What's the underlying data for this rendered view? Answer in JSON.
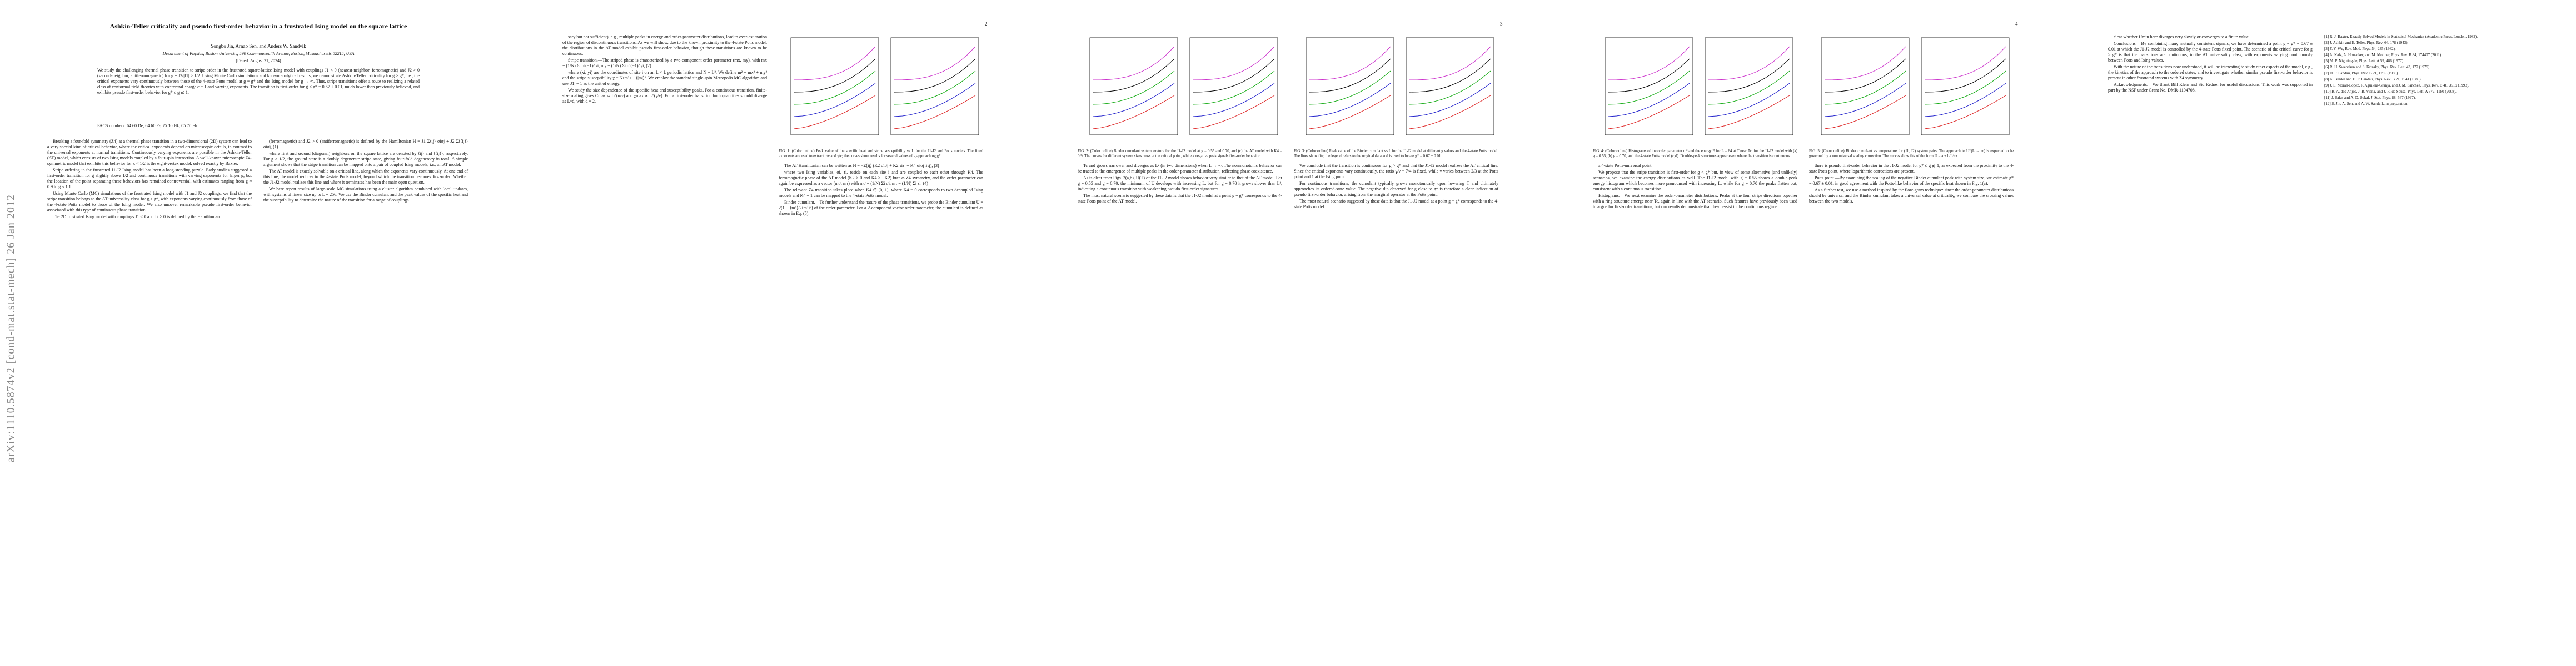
{
  "arxiv_stamp": "arXiv:1110.5874v2  [cond-mat.stat-mech]  26 Jan 2012",
  "header": {
    "title": "Ashkin-Teller criticality and pseudo first-order behavior in a frustrated Ising model on the square lattice",
    "authors": "Songbo Jin, Arnab Sen, and Anders W. Sandvik",
    "affiliation": "Department of Physics, Boston University, 590 Commonwealth Avenue, Boston, Massachusetts 02215, USA",
    "date": "(Dated: August 21, 2024)",
    "abstract": "We study the challenging thermal phase transition to stripe order in the frustrated square-lattice Ising model with couplings J1 < 0 (nearest-neighbor, ferromagnetic) and J2 > 0 (second-neighbor, antiferromagnetic) for g = J2/|J1| > 1/2. Using Monte Carlo simulations and known analytical results, we demonstrate Ashkin-Teller criticality for g ≥ g*; i.e., the critical exponents vary continuously between those of the 4-state Potts model at g = g* and the Ising model for g → ∞. Thus, stripe transitions offer a route to realizing a related class of conformal field theories with conformal charge c = 1 and varying exponents. The transition is first-order for g < g* = 0.67 ± 0.01, much lower than previously believed, and exhibits pseudo first-order behavior for g* ≤ g ≲ 1.",
    "pacs": "PACS numbers: 64.60.De, 64.60.F-, 75.10.Hk, 05.70.Fh"
  },
  "page_numbers": [
    "2",
    "3",
    "4"
  ],
  "columns": [
    {
      "paragraphs": [
        "Breaking a four-fold symmetry (Z4) at a thermal phase transition in a two-dimensional (2D) system can lead to a very special kind of critical behavior, where the critical exponents depend on microscopic details, in contrast to the universal exponents at normal transitions. Continuously varying exponents are possible in the Ashkin-Teller (AT) model, which consists of two Ising models coupled by a four-spin interaction. A well-known microscopic Z4-symmetric model that exhibits this behavior for κ < 1/2 is the eight-vertex model, solved exactly by Baxter.",
        "Stripe ordering in the frustrated J1-J2 Ising model has been a long-standing puzzle. Early studies suggested a first-order transition for g slightly above 1/2 and continuous transitions with varying exponents for larger g, but the location of the point separating these behaviors has remained controversial, with estimates ranging from g ≈ 0.9 to g ≈ 1.1.",
        "Using Monte Carlo (MC) simulations of the frustrated Ising model with J1 and J2 couplings, we find that the stripe transition belongs to the AT universality class for g ≥ g*, with exponents varying continuously from those of the 4-state Potts model to those of the Ising model. We also uncover remarkable pseudo first-order behavior associated with this type of continuous phase transition.",
        "The 2D frustrated Ising model with couplings J1 < 0 and J2 > 0 is defined by the Hamiltonian"
      ]
    },
    {
      "paragraphs": [
        "(ferromagnetic) and J2 > 0 (antiferromagnetic) is defined by the Hamiltonian H = J1 Σ⟨ij⟩ σiσj + J2 Σ⟨⟨ij⟩⟩ σiσj, (1)",
        "where first and second (diagonal) neighbors on the square lattice are denoted by ⟨ij⟩ and ⟨⟨ij⟩⟩, respectively. For g > 1/2, the ground state is a doubly degenerate stripe state, giving four-fold degeneracy in total. A simple argument shows that the stripe transition can be mapped onto a pair of coupled Ising models, i.e., an AT model.",
        "The AT model is exactly solvable on a critical line, along which the exponents vary continuously. At one end of this line, the model reduces to the 4-state Potts model, beyond which the transition becomes first-order. Whether the J1-J2 model realizes this line and where it terminates has been the main open question.",
        "We here report results of large-scale MC simulations using a cluster algorithm combined with local updates, with systems of linear size up to L = 256. We use the Binder cumulant and the peak values of the specific heat and the susceptibility to determine the nature of the transition for a range of couplings."
      ]
    },
    {
      "paragraphs": [
        "sary but not sufficient), e.g., multiple peaks in energy and order-parameter distributions, lead to over-estimation of the region of discontinuous transitions. As we will show, due to the known proximity to the 4-state Potts model, the distributions in the AT model exhibit pseudo first-order behavior, though these transitions are known to be continuous.",
        "Stripe transition.—The striped phase is characterized by a two-component order parameter (mx, my), with mx = (1/N) Σi σi(−1)^xi, my = (1/N) Σi σi(−1)^yi, (2)",
        "where (xi, yi) are the coordinates of site i on an L × L periodic lattice and N = L². We define m² = mx² + my² and the stripe susceptibility χ = N⟨m²⟩ − ⟨|m|⟩². We employ the standard single-spin Metropolis MC algorithm and use |J1| = 1 as the unit of energy.",
        "We study the size dependence of the specific heat and susceptibility peaks. For a continuous transition, finite-size scaling gives Cmax ∝ L^(α/ν) and χmax ∝ L^(γ/ν). For a first-order transition both quantities should diverge as L^d, with d = 2."
      ]
    },
    {
      "figure": {
        "caption": "FIG. 1: (Color online) Peak value of the specific heat and stripe susceptibility vs L for the J1-J2 and Potts models. The fitted exponents are used to extract α/ν and γ/ν; the curves show results for several values of g approaching g*."
      },
      "paragraphs": [
        "The AT Hamiltonian can be written as H = −Σ⟨ij⟩ (K2 σiσj + K2 τiτj + K4 σiσjτiτj), (3)",
        "where two Ising variables, σi, τi, reside on each site i and are coupled to each other through K4. The ferromagnetic phase of the AT model (K2 > 0 and K4 > −K2) breaks Z4 symmetry, and the order parameter can again be expressed as a vector (mσ, mτ) with mσ = (1/N) Σi σi, mτ = (1/N) Σi τi. (4)",
        "The relevant Z4 transition takes place when K4 ∈ [0, 1], where K4 = 0 corresponds to two decoupled Ising models and K4 = 1 can be mapped to the 4-state Potts model.",
        "Binder cumulant.—To further understand the nature of the phase transitions, we probe the Binder cumulant U = 2(1 − ⟨m⁴⟩/2⟨m²⟩²) of the order parameter. For a 2-component vector order parameter, the cumulant is defined as shown in Eq. (5)."
      ]
    },
    {
      "figure": {
        "caption": "FIG. 2: (Color online) Binder cumulant vs temperature for the J1-J2 model at g = 0.55 and 0.70, and (c) the AT model with K4 = 0.9. The curves for different system sizes cross at the critical point, while a negative peak signals first-order behavior."
      },
      "paragraphs": [
        "Tc and grows narrower and diverges as L² (in two dimensions) when L → ∞. The nonmonotonic behavior can be traced to the emergence of multiple peaks in the order-parameter distribution, reflecting phase coexistence.",
        "As is clear from Figs. 2(a,b), U(T) of the J1-J2 model shows behavior very similar to that of the AT model. For g = 0.55 and g = 0.70, the minimum of U develops with increasing L, but for g = 0.70 it grows slower than L², indicating a continuous transition with weakening pseudo first-order signatures.",
        "The most natural scenario suggested by these data is that the J1-J2 model at a point g = g* corresponds to the 4-state Potts point of the AT model."
      ]
    },
    {
      "figure": {
        "caption": "FIG. 3: (Color online) Peak value of the Binder cumulant vs L for the J1-J2 model at different g values and the 4-state Potts model. The lines show fits; the legend refers to the original data and is used to locate g* = 0.67 ± 0.01."
      },
      "paragraphs": [
        "We conclude that the transition is continuous for g > g* and that the J1-J2 model realizes the AT critical line. Since the critical exponents vary continuously, the ratio γ/ν = 7/4 is fixed, while ν varies between 2/3 at the Potts point and 1 at the Ising point.",
        "For continuous transitions, the cumulant typically grows monotonically upon lowering T and ultimately approaches its ordered-state value. The negative dip observed for g close to g* is therefore a clear indication of pseudo first-order behavior, arising from the marginal operator at the Potts point.",
        "The most natural scenario suggested by these data is that the J1-J2 model at a point g = g* corresponds to the 4-state Potts model."
      ]
    },
    {
      "figure": {
        "caption": "FIG. 4: (Color online) Histograms of the order parameter m² and the energy E for L = 64 at T near Tc, for the J1-J2 model with (a) g = 0.55, (b) g = 0.70, and the 4-state Potts model (c,d). Double-peak structures appear even where the transition is continuous."
      },
      "paragraphs": [
        "a 4-state Potts-universal point.",
        "We propose that the stripe transition is first-order for g < g* but, in view of some alternative (and unlikely) scenarios, we examine the energy distributions as well. The J1-J2 model with g = 0.55 shows a double-peak energy histogram which becomes more pronounced with increasing L, while for g = 0.70 the peaks flatten out, consistent with a continuous transition.",
        "Histograms.—We next examine the order-parameter distributions. Peaks at the four stripe directions together with a ring structure emerge near Tc, again in line with the AT scenario. Such features have previously been used to argue for first-order transitions, but our results demonstrate that they persist in the continuous regime."
      ]
    },
    {
      "figure": {
        "caption": "FIG. 5: (Color online) Binder cumulant vs temperature for (J1, J2) system pairs. The approach to U*(L → ∞) is expected to be governed by a nonuniversal scaling correction. The curves show fits of the form U = a + b/L^ω."
      },
      "paragraphs": [
        "there is pseudo first-order behavior in the J1-J2 model for g* ≤ g ≲ 1, as expected from the proximity to the 4-state Potts point, where logarithmic corrections are present.",
        "Potts point.—By examining the scaling of the negative Binder cumulant peak with system size, we estimate g* = 0.67 ± 0.01, in good agreement with the Potts-like behavior of the specific heat shown in Fig. 1(a).",
        "As a further test, we use a method inspired by the flow-gram technique: since the order-parameter distributions should be universal and the Binder cumulant takes a universal value at criticality, we compare the crossing values between the two models."
      ]
    },
    {
      "paragraphs": [
        "clear whether Umin here diverges very slowly or converges to a finite value.",
        "Conclusions.—By combining many mutually consistent signals, we have determined a point g = g* = 0.67 ± 0.01 at which the J1-J2 model is controlled by the 4-state Potts fixed point. The scenario of the critical curve for g ≥ g* is that the transitions are continuous, in the AT universality class, with exponents varying continuously between Potts and Ising values.",
        "With the nature of the transitions now understood, it will be interesting to study other aspects of the model, e.g., the kinetics of the approach to the ordered states, and to investigate whether similar pseudo first-order behavior is present in other frustrated systems with Z4 symmetry.",
        "Acknowledgments.—We thank Bill Klein and Sid Redner for useful discussions. This work was supported in part by the NSF under Grant No. DMR-1104708."
      ]
    },
    {
      "references": [
        "[1] R. J. Baxter, Exactly Solved Models in Statistical Mechanics (Academic Press, London, 1982).",
        "[2] J. Ashkin and E. Teller, Phys. Rev. 64, 178 (1943).",
        "[3] F. Y. Wu, Rev. Mod. Phys. 54, 235 (1982).",
        "[4] A. Kalz, A. Honecker, and M. Moliner, Phys. Rev. B 84, 174407 (2011).",
        "[5] M. P. Nightingale, Phys. Lett. A 59, 486 (1977).",
        "[6] R. H. Swendsen and S. Krinsky, Phys. Rev. Lett. 43, 177 (1979).",
        "[7] D. P. Landau, Phys. Rev. B 21, 1285 (1980).",
        "[8] K. Binder and D. P. Landau, Phys. Rev. B 21, 1941 (1980).",
        "[9] J. L. Morán-López, F. Aguilera-Granja, and J. M. Sanchez, Phys. Rev. B 48, 3519 (1993).",
        "[10] R. A. dos Anjos, J. R. Viana, and J. R. de Sousa, Phys. Lett. A 372, 1180 (2008).",
        "[11] J. Salas and A. D. Sokal, J. Stat. Phys. 88, 567 (1997).",
        "[12] S. Jin, A. Sen, and A. W. Sandvik, in preparation."
      ]
    }
  ]
}
